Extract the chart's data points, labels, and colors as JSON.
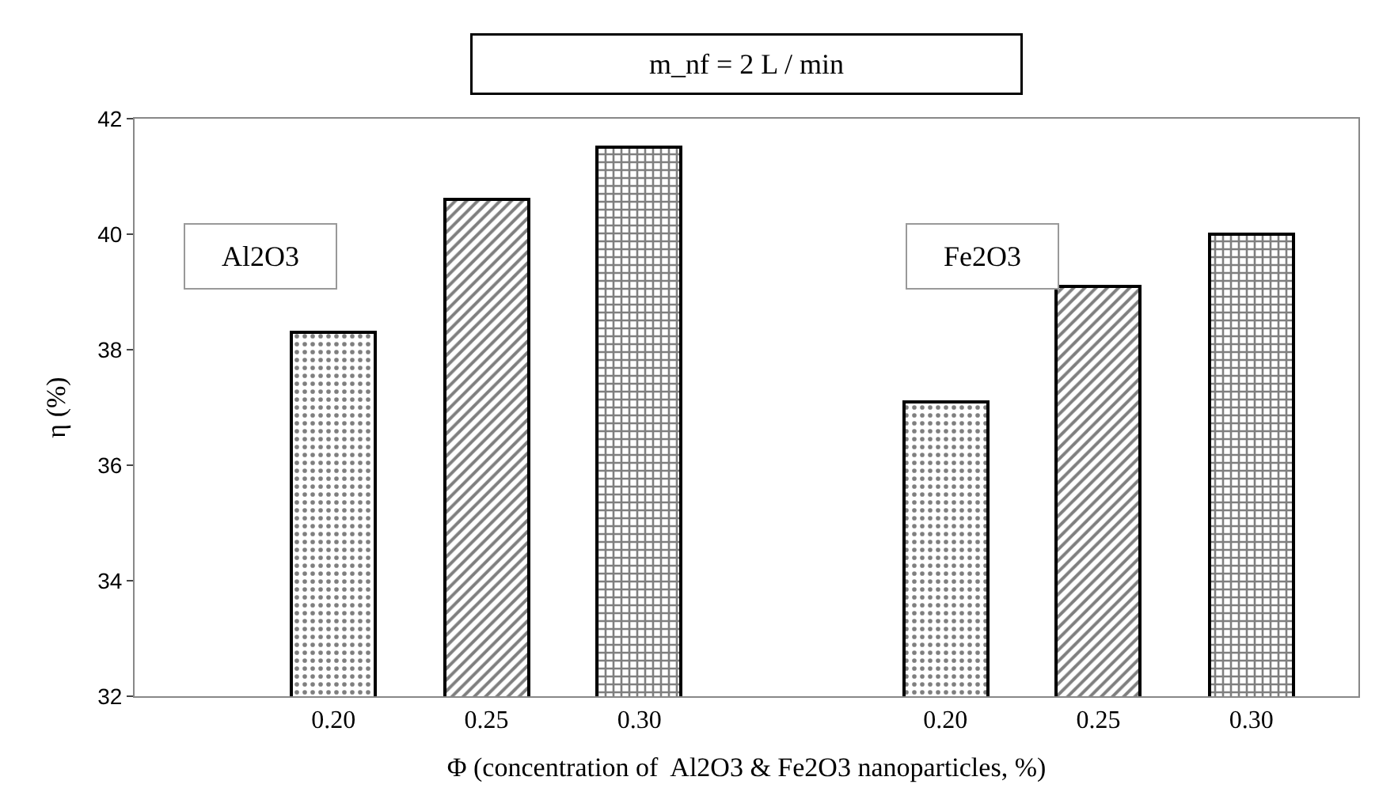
{
  "chart_data": {
    "type": "bar",
    "title": "m_nf = 2 L / min",
    "xlabel": "Φ (concentration of  Al2O3 & Fe2O3 nanoparticles, %)",
    "ylabel": "η (%)",
    "categories": [
      "0.20",
      "0.25",
      "0.30",
      null,
      "0.20",
      "0.25",
      "0.30"
    ],
    "values": [
      38.3,
      40.6,
      41.5,
      null,
      37.1,
      39.1,
      40.0
    ],
    "colors": [
      "#000000",
      "#000000",
      "#000000",
      "#000000",
      "#000000",
      "#000000",
      "#000000"
    ],
    "ylim": [
      32,
      42
    ],
    "yticks": [
      32,
      34,
      36,
      38,
      40,
      42
    ],
    "annotations": [
      "Al2O3",
      "Fe2O3"
    ]
  }
}
